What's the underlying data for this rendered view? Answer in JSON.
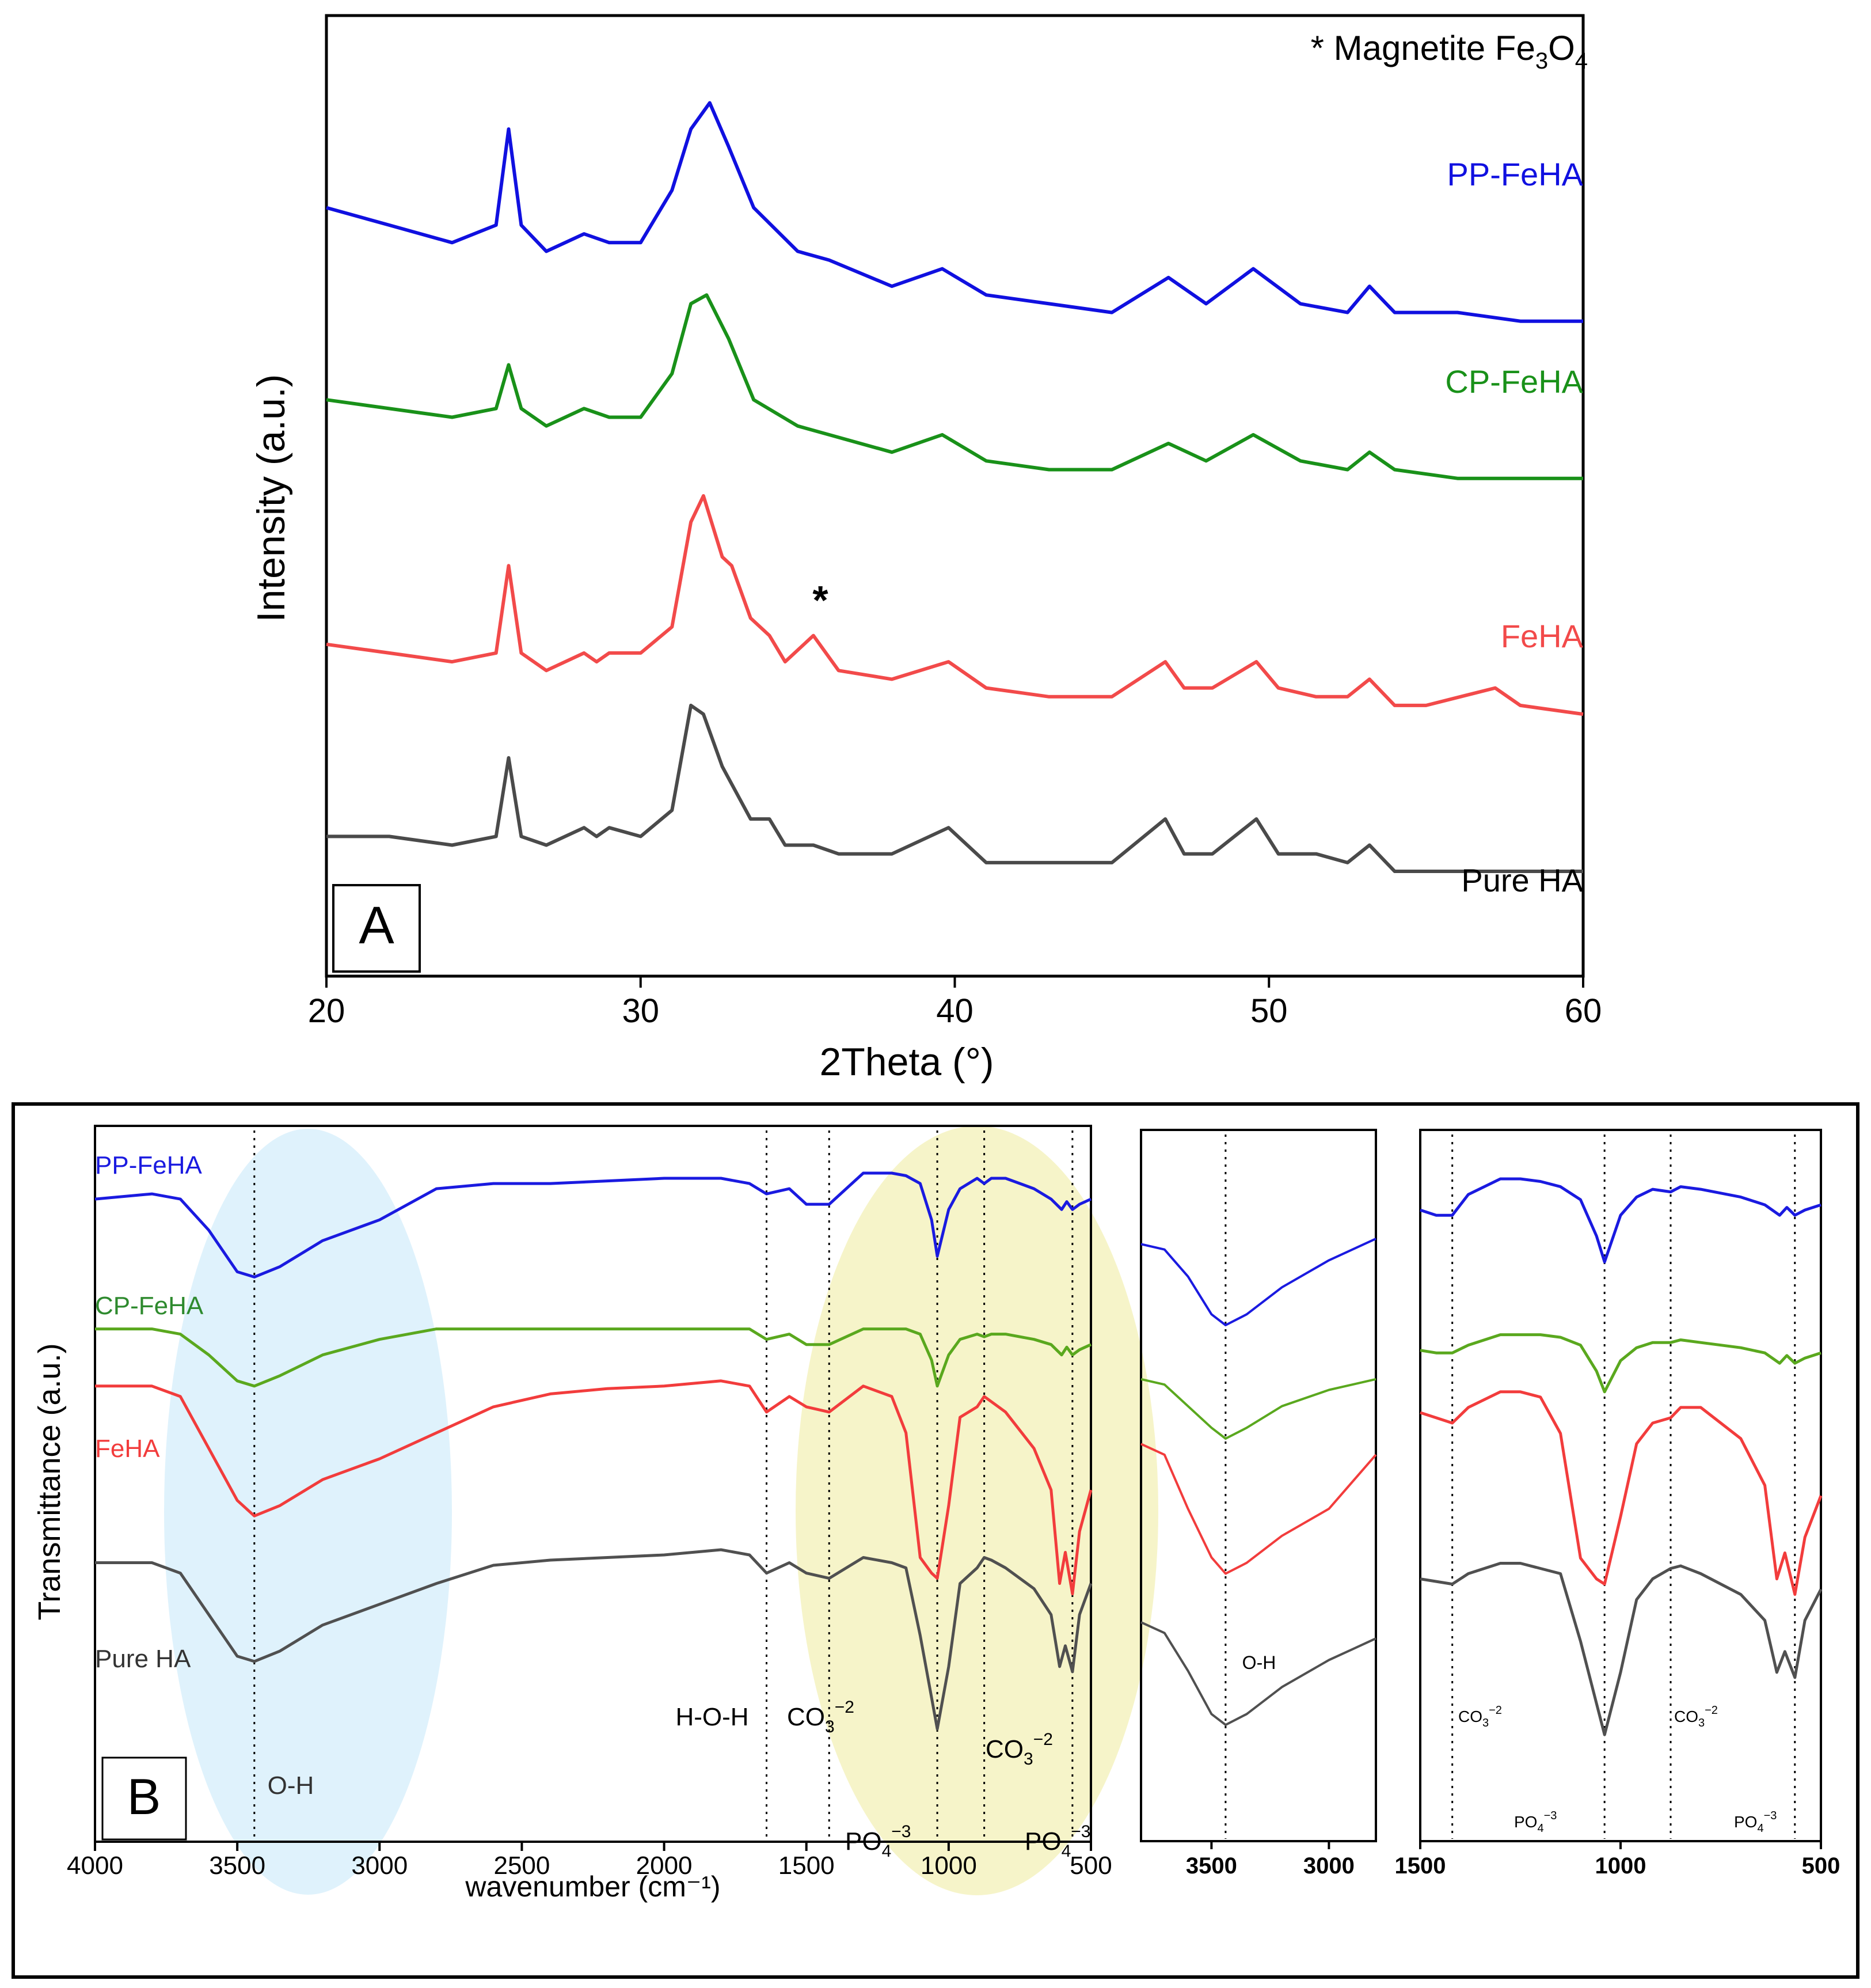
{
  "panel_a": {
    "label": "A",
    "note_prefix": "* Magnetite Fe",
    "note_sub1": "3",
    "note_mid": "O",
    "note_sub2": "4",
    "asterisk": "*"
  },
  "panel_b": {
    "label": "B",
    "annotations": {
      "oh": "O-H",
      "hoh": "H-O-H",
      "co3": "CO",
      "co3_sub": "3",
      "co3_sup": "−2",
      "po4": "PO",
      "po4_sub": "4",
      "po4_sup": "−3",
      "po4_right_sup": "−3"
    }
  },
  "chart_data": [
    {
      "id": "xrd",
      "type": "line",
      "title": "",
      "xlabel": "2Theta (°)",
      "ylabel": "Intensity (a.u.)",
      "xlim": [
        20,
        60
      ],
      "xticks": [
        20,
        30,
        40,
        50,
        60
      ],
      "ytick_labels": "none",
      "series": [
        {
          "name": "PP-FeHA",
          "color": "#1010e0",
          "x": [
            20,
            22,
            24,
            25.4,
            25.8,
            26.2,
            27,
            28.2,
            29,
            30,
            31,
            31.6,
            32.2,
            32.8,
            33.6,
            35,
            36,
            38,
            39.6,
            41,
            43,
            45,
            46.8,
            48,
            49.5,
            51,
            52.5,
            53.2,
            54,
            56,
            58,
            60
          ],
          "y": [
            0.88,
            0.86,
            0.84,
            0.86,
            0.97,
            0.86,
            0.83,
            0.85,
            0.84,
            0.84,
            0.9,
            0.97,
            1.0,
            0.95,
            0.88,
            0.83,
            0.82,
            0.79,
            0.81,
            0.78,
            0.77,
            0.76,
            0.8,
            0.77,
            0.81,
            0.77,
            0.76,
            0.79,
            0.76,
            0.76,
            0.75,
            0.75
          ]
        },
        {
          "name": "CP-FeHA",
          "color": "#199119",
          "x": [
            20,
            22,
            24,
            25.4,
            25.8,
            26.2,
            27,
            28.2,
            29,
            30,
            31,
            31.6,
            32.1,
            32.8,
            33.6,
            35,
            36,
            38,
            39.6,
            41,
            43,
            45,
            46.8,
            48,
            49.5,
            51,
            52.5,
            53.2,
            54,
            56,
            58,
            60
          ],
          "y": [
            0.66,
            0.65,
            0.64,
            0.65,
            0.7,
            0.65,
            0.63,
            0.65,
            0.64,
            0.64,
            0.69,
            0.77,
            0.78,
            0.73,
            0.66,
            0.63,
            0.62,
            0.6,
            0.62,
            0.59,
            0.58,
            0.58,
            0.61,
            0.59,
            0.62,
            0.59,
            0.58,
            0.6,
            0.58,
            0.57,
            0.57,
            0.57
          ]
        },
        {
          "name": "FeHA",
          "color": "#f24a4a",
          "x": [
            20,
            22,
            24,
            25.4,
            25.8,
            26.2,
            27,
            28.2,
            28.6,
            29,
            30,
            31,
            31.6,
            32,
            32.6,
            32.9,
            33.5,
            34.1,
            34.6,
            35.5,
            36.3,
            38,
            39.8,
            41,
            43,
            45,
            46.7,
            47.3,
            48.2,
            49.6,
            50.3,
            51.5,
            52.5,
            53.2,
            54,
            55,
            57.2,
            58,
            60
          ],
          "y": [
            0.38,
            0.37,
            0.36,
            0.37,
            0.47,
            0.37,
            0.35,
            0.37,
            0.36,
            0.37,
            0.37,
            0.4,
            0.52,
            0.55,
            0.48,
            0.47,
            0.41,
            0.39,
            0.36,
            0.39,
            0.35,
            0.34,
            0.36,
            0.33,
            0.32,
            0.32,
            0.36,
            0.33,
            0.33,
            0.36,
            0.33,
            0.32,
            0.32,
            0.34,
            0.31,
            0.31,
            0.33,
            0.31,
            0.3
          ]
        },
        {
          "name": "Pure HA",
          "color": "#4a4a4a",
          "x": [
            20,
            22,
            24,
            25.4,
            25.8,
            26.2,
            27,
            28.2,
            28.6,
            29,
            30,
            31,
            31.6,
            32,
            32.6,
            32.9,
            33.5,
            34.1,
            34.6,
            35.5,
            36.3,
            38,
            39.8,
            41,
            43,
            45,
            46.7,
            47.3,
            48.2,
            49.6,
            50.3,
            51.5,
            52.5,
            53.2,
            54,
            56,
            58,
            60
          ],
          "y": [
            0.16,
            0.16,
            0.15,
            0.16,
            0.25,
            0.16,
            0.15,
            0.17,
            0.16,
            0.17,
            0.16,
            0.19,
            0.31,
            0.3,
            0.24,
            0.22,
            0.18,
            0.18,
            0.15,
            0.15,
            0.14,
            0.14,
            0.17,
            0.13,
            0.13,
            0.13,
            0.18,
            0.14,
            0.14,
            0.18,
            0.14,
            0.14,
            0.13,
            0.15,
            0.12,
            0.12,
            0.12,
            0.12
          ]
        }
      ]
    },
    {
      "id": "ftir-full",
      "type": "line",
      "title": "",
      "xlabel": "wavenumber (cm⁻¹)",
      "ylabel": "Transmittance (a.u.)",
      "xlim": [
        4000,
        500
      ],
      "xticks": [
        4000,
        3500,
        3000,
        2500,
        2000,
        1500,
        1000,
        500
      ],
      "reference_lines": [
        3440,
        1640,
        1420,
        1040,
        875,
        565
      ],
      "series": [
        {
          "name": "PP-FeHA",
          "color": "#1a1ae0",
          "x": [
            4000,
            3800,
            3700,
            3600,
            3500,
            3440,
            3350,
            3200,
            3000,
            2800,
            2600,
            2400,
            2200,
            2000,
            1900,
            1800,
            1700,
            1640,
            1560,
            1500,
            1420,
            1300,
            1200,
            1150,
            1100,
            1060,
            1040,
            1000,
            960,
            900,
            875,
            850,
            800,
            700,
            640,
            603,
            585,
            565,
            540,
            500
          ],
          "y": [
            0.94,
            0.95,
            0.94,
            0.88,
            0.8,
            0.79,
            0.81,
            0.86,
            0.9,
            0.96,
            0.97,
            0.97,
            0.975,
            0.98,
            0.98,
            0.98,
            0.97,
            0.95,
            0.96,
            0.93,
            0.93,
            0.99,
            0.99,
            0.985,
            0.97,
            0.9,
            0.83,
            0.92,
            0.96,
            0.98,
            0.97,
            0.98,
            0.98,
            0.96,
            0.94,
            0.92,
            0.935,
            0.92,
            0.93,
            0.94
          ]
        },
        {
          "name": "CP-FeHA",
          "color": "#5aa81e",
          "x": [
            4000,
            3800,
            3700,
            3600,
            3500,
            3440,
            3350,
            3200,
            3000,
            2800,
            2600,
            2400,
            2200,
            2000,
            1900,
            1800,
            1700,
            1640,
            1560,
            1500,
            1420,
            1300,
            1200,
            1150,
            1100,
            1060,
            1040,
            1000,
            960,
            900,
            875,
            850,
            800,
            700,
            640,
            603,
            585,
            565,
            540,
            500
          ],
          "y": [
            0.69,
            0.69,
            0.68,
            0.64,
            0.59,
            0.58,
            0.6,
            0.64,
            0.67,
            0.69,
            0.69,
            0.69,
            0.69,
            0.69,
            0.69,
            0.69,
            0.69,
            0.67,
            0.68,
            0.66,
            0.66,
            0.69,
            0.69,
            0.69,
            0.68,
            0.63,
            0.58,
            0.64,
            0.67,
            0.68,
            0.675,
            0.68,
            0.68,
            0.67,
            0.66,
            0.64,
            0.655,
            0.64,
            0.65,
            0.66
          ]
        },
        {
          "name": "FeHA",
          "color": "#f23c3c",
          "x": [
            4000,
            3800,
            3700,
            3600,
            3500,
            3440,
            3350,
            3200,
            3000,
            2800,
            2600,
            2400,
            2200,
            2000,
            1900,
            1800,
            1700,
            1640,
            1560,
            1500,
            1420,
            1300,
            1200,
            1150,
            1100,
            1060,
            1040,
            1000,
            960,
            900,
            875,
            850,
            800,
            700,
            640,
            610,
            590,
            565,
            540,
            500
          ],
          "y": [
            0.58,
            0.58,
            0.56,
            0.46,
            0.36,
            0.33,
            0.35,
            0.4,
            0.44,
            0.49,
            0.54,
            0.565,
            0.575,
            0.58,
            0.585,
            0.59,
            0.58,
            0.53,
            0.56,
            0.54,
            0.53,
            0.58,
            0.56,
            0.49,
            0.25,
            0.22,
            0.21,
            0.35,
            0.52,
            0.54,
            0.56,
            0.55,
            0.53,
            0.46,
            0.38,
            0.2,
            0.26,
            0.18,
            0.3,
            0.38
          ]
        },
        {
          "name": "Pure HA",
          "color": "#505050",
          "x": [
            4000,
            3800,
            3700,
            3600,
            3500,
            3440,
            3350,
            3200,
            3000,
            2800,
            2600,
            2400,
            2200,
            2000,
            1900,
            1800,
            1700,
            1640,
            1560,
            1500,
            1420,
            1300,
            1200,
            1150,
            1100,
            1060,
            1040,
            1000,
            960,
            900,
            875,
            850,
            800,
            700,
            640,
            610,
            590,
            565,
            540,
            500
          ],
          "y": [
            0.24,
            0.24,
            0.22,
            0.14,
            0.06,
            0.05,
            0.07,
            0.12,
            0.16,
            0.2,
            0.235,
            0.245,
            0.25,
            0.255,
            0.26,
            0.265,
            0.255,
            0.22,
            0.24,
            0.22,
            0.21,
            0.25,
            0.24,
            0.23,
            0.1,
            -0.02,
            -0.08,
            0.04,
            0.2,
            0.23,
            0.25,
            0.245,
            0.23,
            0.19,
            0.14,
            0.04,
            0.08,
            0.03,
            0.14,
            0.2
          ]
        }
      ]
    },
    {
      "id": "ftir-oh-zoom",
      "type": "line",
      "title": "",
      "xlabel": "",
      "ylabel": "",
      "xlim": [
        3800,
        2800
      ],
      "xticks": [
        3500,
        3000
      ],
      "reference_lines": [
        3440
      ],
      "annotation": "O-H",
      "series": [
        {
          "name": "PP-FeHA",
          "color": "#1a1ae0",
          "x": [
            3800,
            3700,
            3600,
            3500,
            3440,
            3350,
            3200,
            3000,
            2900,
            2800
          ],
          "y": [
            0.94,
            0.93,
            0.88,
            0.81,
            0.79,
            0.81,
            0.86,
            0.91,
            0.93,
            0.95
          ]
        },
        {
          "name": "CP-FeHA",
          "color": "#5aa81e",
          "x": [
            3800,
            3700,
            3600,
            3500,
            3440,
            3350,
            3200,
            3000,
            2900,
            2800
          ],
          "y": [
            0.69,
            0.68,
            0.64,
            0.6,
            0.58,
            0.6,
            0.64,
            0.67,
            0.68,
            0.69
          ]
        },
        {
          "name": "FeHA",
          "color": "#f23c3c",
          "x": [
            3800,
            3700,
            3600,
            3500,
            3440,
            3350,
            3200,
            3000,
            2900,
            2800
          ],
          "y": [
            0.57,
            0.55,
            0.45,
            0.36,
            0.33,
            0.35,
            0.4,
            0.45,
            0.5,
            0.55
          ]
        },
        {
          "name": "Pure HA",
          "color": "#505050",
          "x": [
            3800,
            3700,
            3600,
            3500,
            3440,
            3350,
            3200,
            3000,
            2900,
            2800
          ],
          "y": [
            0.24,
            0.22,
            0.15,
            0.07,
            0.05,
            0.07,
            0.12,
            0.17,
            0.19,
            0.21
          ]
        }
      ]
    },
    {
      "id": "ftir-fingerprint-zoom",
      "type": "line",
      "title": "",
      "xlabel": "",
      "ylabel": "",
      "xlim": [
        1500,
        500
      ],
      "xticks": [
        1500,
        1000,
        500
      ],
      "reference_lines": [
        1420,
        1040,
        875,
        565
      ],
      "series": [
        {
          "name": "PP-FeHA",
          "color": "#1a1ae0",
          "x": [
            1500,
            1460,
            1420,
            1380,
            1300,
            1250,
            1200,
            1150,
            1100,
            1060,
            1040,
            1000,
            960,
            920,
            875,
            850,
            800,
            700,
            640,
            603,
            585,
            565,
            540,
            500
          ],
          "y": [
            0.93,
            0.92,
            0.92,
            0.96,
            0.99,
            0.99,
            0.985,
            0.975,
            0.95,
            0.88,
            0.83,
            0.92,
            0.955,
            0.97,
            0.965,
            0.975,
            0.97,
            0.955,
            0.94,
            0.92,
            0.935,
            0.92,
            0.93,
            0.94
          ]
        },
        {
          "name": "CP-FeHA",
          "color": "#5aa81e",
          "x": [
            1500,
            1460,
            1420,
            1380,
            1300,
            1250,
            1200,
            1150,
            1100,
            1060,
            1040,
            1000,
            960,
            920,
            875,
            850,
            800,
            700,
            640,
            603,
            585,
            565,
            540,
            500
          ],
          "y": [
            0.66,
            0.655,
            0.655,
            0.67,
            0.69,
            0.69,
            0.69,
            0.685,
            0.67,
            0.62,
            0.58,
            0.64,
            0.665,
            0.675,
            0.675,
            0.68,
            0.675,
            0.665,
            0.655,
            0.635,
            0.65,
            0.635,
            0.645,
            0.655
          ]
        },
        {
          "name": "FeHA",
          "color": "#f23c3c",
          "x": [
            1500,
            1460,
            1420,
            1380,
            1300,
            1250,
            1200,
            1150,
            1100,
            1060,
            1040,
            1000,
            960,
            920,
            875,
            850,
            800,
            700,
            640,
            610,
            590,
            565,
            540,
            500
          ],
          "y": [
            0.54,
            0.53,
            0.52,
            0.55,
            0.58,
            0.58,
            0.57,
            0.5,
            0.26,
            0.22,
            0.21,
            0.34,
            0.48,
            0.52,
            0.53,
            0.55,
            0.55,
            0.49,
            0.4,
            0.22,
            0.27,
            0.19,
            0.3,
            0.38
          ]
        },
        {
          "name": "Pure HA",
          "color": "#505050",
          "x": [
            1500,
            1460,
            1420,
            1380,
            1300,
            1250,
            1200,
            1150,
            1100,
            1060,
            1040,
            1000,
            960,
            920,
            875,
            850,
            800,
            700,
            640,
            610,
            590,
            565,
            540,
            500
          ],
          "y": [
            0.22,
            0.215,
            0.21,
            0.23,
            0.25,
            0.25,
            0.24,
            0.23,
            0.1,
            -0.02,
            -0.08,
            0.04,
            0.18,
            0.22,
            0.24,
            0.245,
            0.23,
            0.19,
            0.14,
            0.04,
            0.08,
            0.03,
            0.14,
            0.2
          ]
        }
      ]
    }
  ]
}
